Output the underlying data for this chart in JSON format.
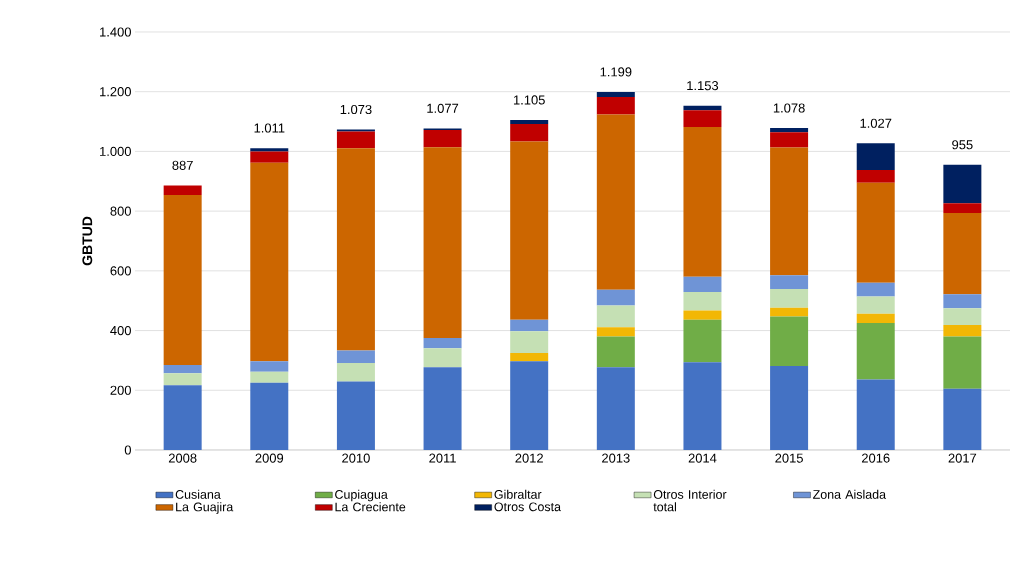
{
  "chart_data": {
    "type": "bar",
    "stacked": true,
    "ylabel": "GBTUD",
    "categories": [
      "2008",
      "2009",
      "2010",
      "2011",
      "2012",
      "2013",
      "2014",
      "2015",
      "2016",
      "2017"
    ],
    "series": [
      {
        "name": "Cusiana",
        "color": "#4472c4",
        "values": [
          217,
          225,
          229,
          277,
          297,
          277,
          294,
          281,
          236,
          205
        ]
      },
      {
        "name": "Cupiagua",
        "color": "#70ad47",
        "values": [
          0,
          0,
          0,
          0,
          0,
          103,
          142,
          166,
          189,
          175
        ]
      },
      {
        "name": "Gibraltar",
        "color": "#f2b705",
        "values": [
          0,
          0,
          0,
          0,
          28,
          31,
          31,
          29,
          31,
          39
        ]
      },
      {
        "name": "Otros Interior",
        "color": "#c5e0b4",
        "values": [
          40,
          37,
          62,
          64,
          73,
          73,
          62,
          63,
          58,
          56
        ]
      },
      {
        "name": "Zona Aislada",
        "color": "#6f94d6",
        "values": [
          28,
          35,
          42,
          34,
          38,
          53,
          51,
          46,
          46,
          47
        ]
      },
      {
        "name": "La Guajira",
        "color": "#cc6600",
        "values": [
          569,
          665,
          678,
          639,
          597,
          587,
          502,
          428,
          335,
          272
        ]
      },
      {
        "name": "La Creciente",
        "color": "#c00000",
        "values": [
          32,
          38,
          56,
          58,
          59,
          58,
          56,
          51,
          43,
          32
        ]
      },
      {
        "name": "Otros Costa",
        "color": "#002060",
        "values": [
          null,
          11,
          6,
          5,
          13,
          17,
          15,
          14,
          89,
          129
        ]
      }
    ],
    "totals": [
      "887",
      "1.011",
      "1.073",
      "1.077",
      "1.105",
      "1.199",
      "1.153",
      "1.078",
      "1.027",
      "955"
    ],
    "annotations": [
      "total"
    ],
    "ylim": [
      0,
      1400
    ],
    "yticks": [
      {
        "value": 0,
        "label": "0"
      },
      {
        "value": 200,
        "label": "200"
      },
      {
        "value": 400,
        "label": "400"
      },
      {
        "value": 600,
        "label": "600"
      },
      {
        "value": 800,
        "label": "800"
      },
      {
        "value": 1000,
        "label": "1.000"
      },
      {
        "value": 1200,
        "label": "1.200"
      },
      {
        "value": 1400,
        "label": "1.400"
      }
    ],
    "grid": "y",
    "legend": "bottom"
  }
}
